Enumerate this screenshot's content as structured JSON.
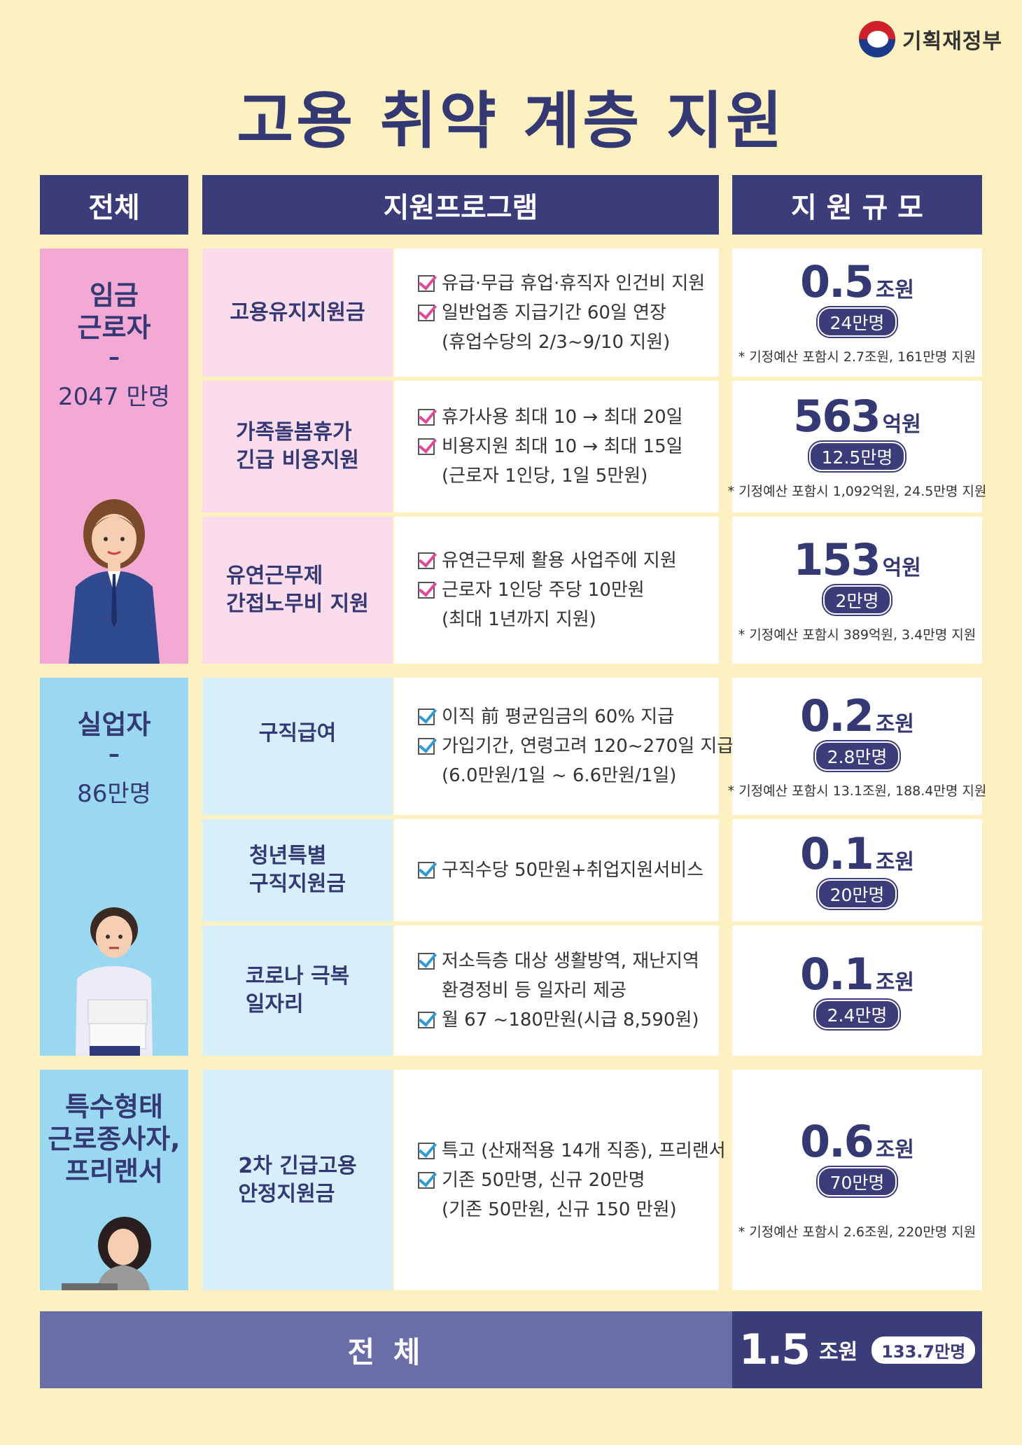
{
  "ministry": "기획재정부",
  "title": "고용 취약 계층 지원",
  "headers": {
    "all": "전체",
    "program": "지원프로그램",
    "scale": "지 원 규 모"
  },
  "groups": [
    {
      "label": "임금\n근로자",
      "dash": "–",
      "count": "2047 만명"
    },
    {
      "label": "실업자",
      "dash": "–",
      "count": "86만명"
    },
    {
      "label": "특수형태\n근로종사자,\n프리랜서"
    }
  ],
  "rows": [
    {
      "program": "고용유지지원금",
      "lines": [
        "유급·무급 휴업·휴직자 인건비 지원",
        "일반업종 지급기간 60일 연장"
      ],
      "sub": "(휴업수당의 2/3~9/10 지원)",
      "amount": "0.5",
      "unit": "조원",
      "people": "24만명",
      "note": "* 기정예산 포함시 2.7조원, 161만명 지원"
    },
    {
      "program": "가족돌봄휴가\n긴급 비용지원",
      "lines": [
        "휴가사용 최대 10 → 최대 20일",
        "비용지원 최대 10 → 최대 15일"
      ],
      "sub": "(근로자 1인당, 1일 5만원)",
      "amount": "563",
      "unit": "억원",
      "people": "12.5만명",
      "note": "* 기정예산 포함시 1,092억원, 24.5만명 지원"
    },
    {
      "program": "유연근무제\n간접노무비 지원",
      "lines": [
        "유연근무제 활용 사업주에 지원",
        "근로자 1인당 주당 10만원"
      ],
      "sub": "(최대 1년까지 지원)",
      "amount": "153",
      "unit": "억원",
      "people": "2만명",
      "note": "* 기정예산 포함시 389억원, 3.4만명 지원"
    },
    {
      "program": "구직급여",
      "lines": [
        "이직 前 평균임금의 60% 지급",
        "가입기간, 연령고려 120~270일 지급"
      ],
      "sub": "(6.0만원/1일 ~ 6.6만원/1일)",
      "amount": "0.2",
      "unit": "조원",
      "people": "2.8만명",
      "note": "* 기정예산 포함시 13.1조원, 188.4만명 지원"
    },
    {
      "program": "청년특별\n구직지원금",
      "lines": [
        "구직수당 50만원+취업지원서비스"
      ],
      "sub": "",
      "amount": "0.1",
      "unit": "조원",
      "people": "20만명",
      "note": ""
    },
    {
      "program": "코로나 극복\n일자리",
      "lines": [
        "저소득층 대상 생활방역, 재난지역"
      ],
      "sub": "환경정비 등 일자리 제공",
      "lines2": [
        "월 67 ~180만원(시급 8,590원)"
      ],
      "amount": "0.1",
      "unit": "조원",
      "people": "2.4만명",
      "note": ""
    },
    {
      "program": "2차 긴급고용\n안정지원금",
      "lines": [
        "특고 (산재적용 14개 직종), 프리랜서",
        "기존 50만명, 신규 20만명"
      ],
      "sub": "(기존 50만원, 신규 150 만원)",
      "amount": "0.6",
      "unit": "조원",
      "people": "70만명",
      "note": "* 기정예산 포함시 2.6조원, 220만명 지원"
    }
  ],
  "total": {
    "label": "전 체",
    "amount": "1.5",
    "unit": "조원",
    "people": "133.7만명"
  },
  "colors": {
    "navy": "#3b3c7a",
    "pink": "#f3a9d4",
    "pink_light": "#fbdcec",
    "blue": "#9ad8f2",
    "blue_light": "#d6effa",
    "background": "#fdf1c2"
  }
}
